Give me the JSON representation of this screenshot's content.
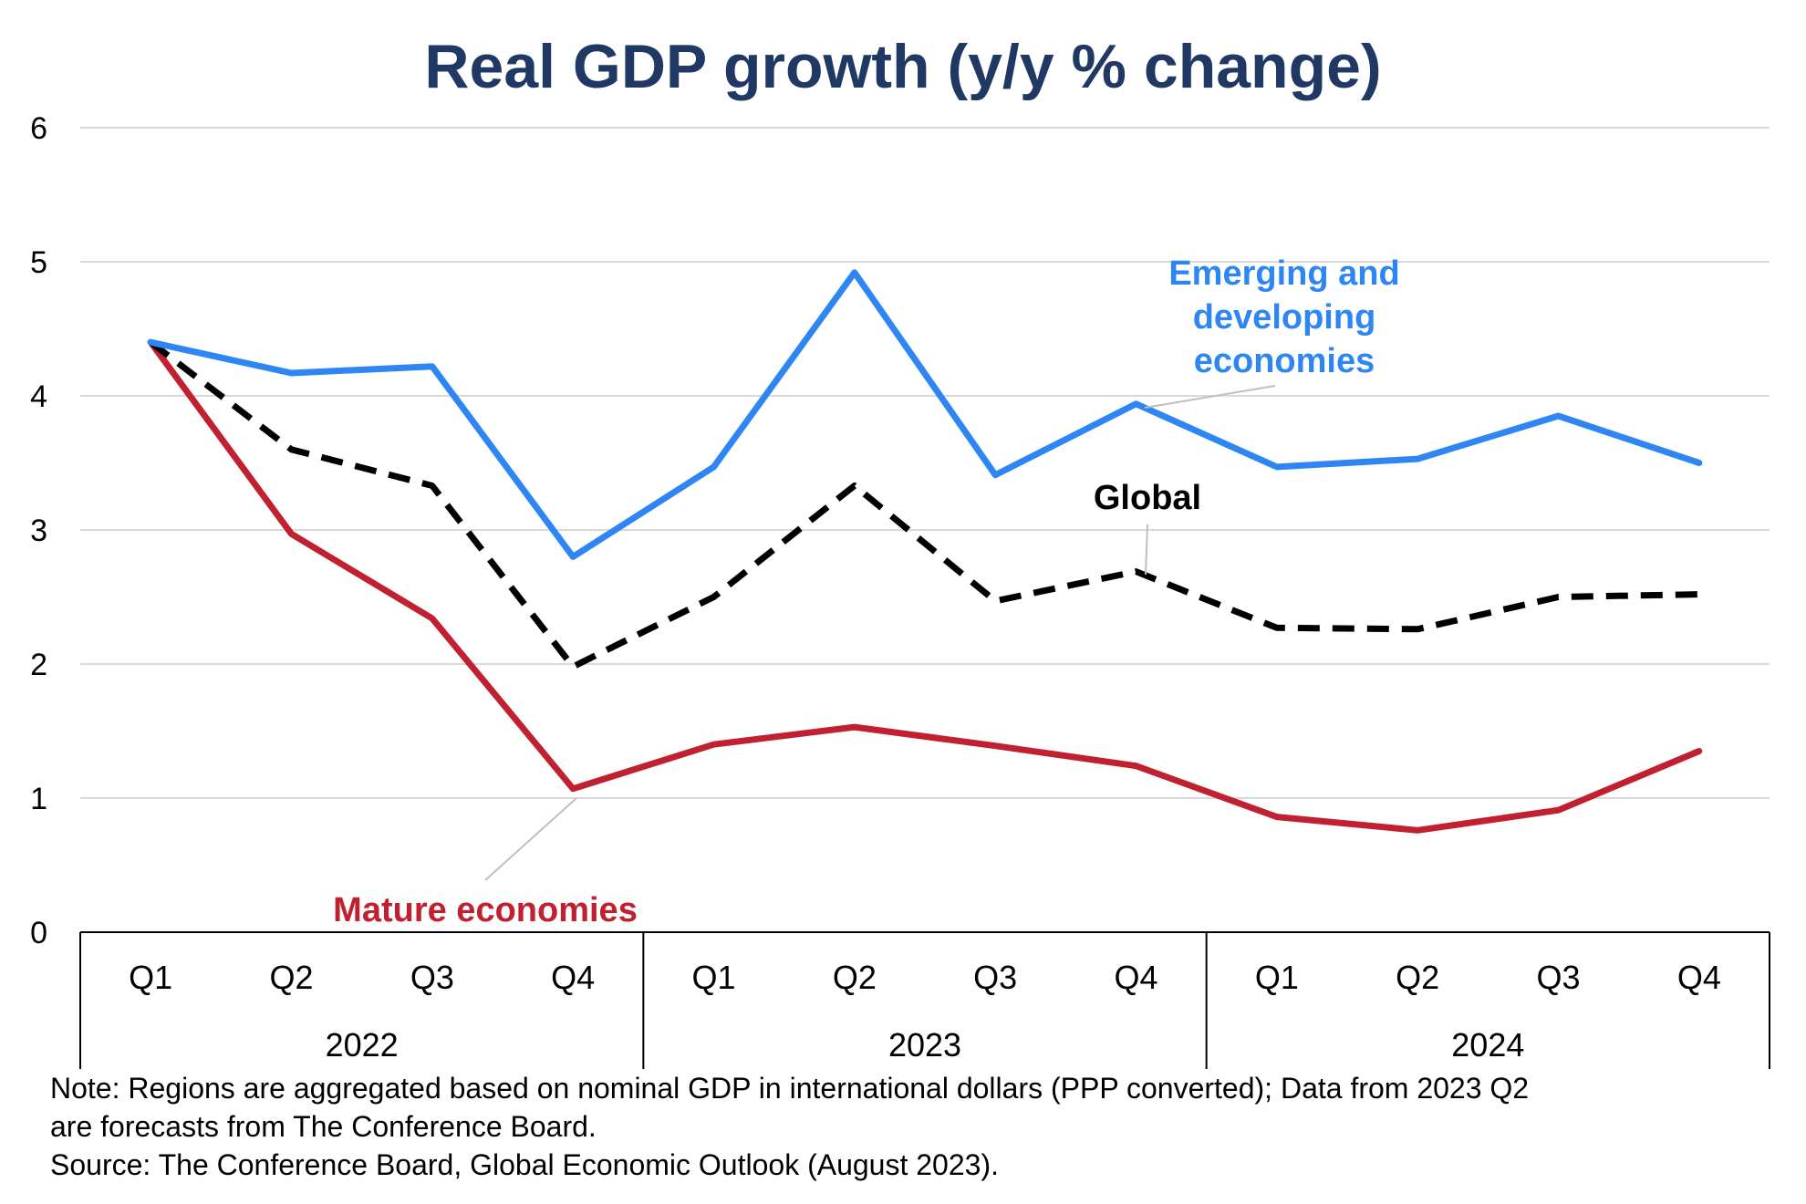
{
  "chart_data": {
    "type": "line",
    "title": "Real GDP growth (y/y % change)",
    "categories": [
      "Q1",
      "Q2",
      "Q3",
      "Q4",
      "Q1",
      "Q2",
      "Q3",
      "Q4",
      "Q1",
      "Q2",
      "Q3",
      "Q4"
    ],
    "groups": [
      {
        "label": "2022",
        "span": 4
      },
      {
        "label": "2023",
        "span": 4
      },
      {
        "label": "2024",
        "span": 4
      }
    ],
    "ylim": [
      0,
      6
    ],
    "yticks": [
      0,
      1,
      2,
      3,
      4,
      5,
      6
    ],
    "grid": true,
    "series": [
      {
        "name": "Emerging and developing economies",
        "label_lines": [
          "Emerging and",
          "developing",
          "economies"
        ],
        "color": "#2E86F5",
        "dash": false,
        "values": [
          4.4,
          4.17,
          4.22,
          2.8,
          3.47,
          4.92,
          3.41,
          3.94,
          3.47,
          3.53,
          3.85,
          3.5
        ]
      },
      {
        "name": "Global",
        "label_lines": [
          "Global"
        ],
        "color": "#000000",
        "dash": true,
        "values": [
          4.4,
          3.6,
          3.33,
          1.98,
          2.5,
          3.33,
          2.47,
          2.69,
          2.27,
          2.26,
          2.5,
          2.52
        ]
      },
      {
        "name": "Mature economies",
        "label_lines": [
          "Mature economies"
        ],
        "color": "#C0202F",
        "dash": false,
        "values": [
          4.4,
          2.97,
          2.34,
          1.07,
          1.4,
          1.53,
          1.39,
          1.24,
          0.86,
          0.76,
          0.91,
          1.35
        ]
      }
    ],
    "notes": [
      "Note: Regions are aggregated based on nominal GDP in international dollars (PPP converted); Data from 2023 Q2",
      "are forecasts from The Conference Board.",
      "Source: The Conference Board, Global Economic Outlook (August 2023)."
    ]
  }
}
